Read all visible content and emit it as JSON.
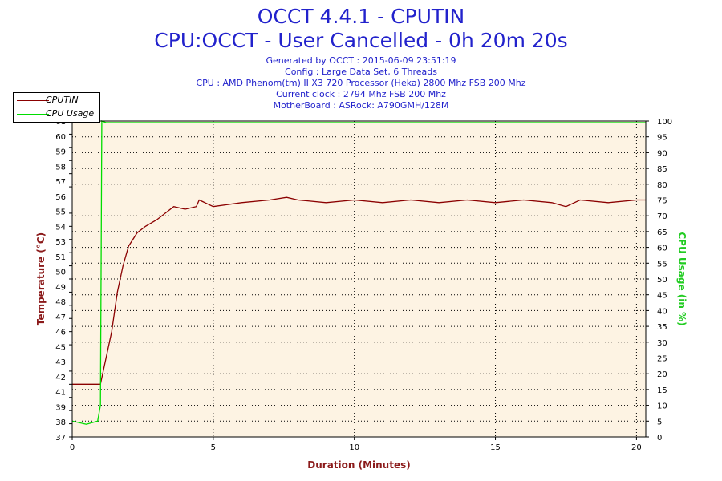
{
  "header": {
    "title_line1": "OCCT 4.4.1 - CPUTIN",
    "title_line2": "CPU:OCCT - User Cancelled - 0h 20m 20s",
    "generated": "Generated by OCCT : 2015-06-09 23:51:19",
    "config": "Config : Large Data Set, 6 Threads",
    "cpu": "CPU : AMD Phenom(tm) II X3 720 Processor (Heka) 2800 Mhz FSB 200 Mhz",
    "clock": "Current clock : 2794 Mhz FSB 200 Mhz",
    "motherboard": "MotherBoard : ASRock: A790GMH/128M"
  },
  "legend": {
    "items": [
      {
        "label": "CPUTIN",
        "color": "#8b0000"
      },
      {
        "label": "CPU Usage",
        "color": "#00dd00"
      }
    ]
  },
  "chart_data": {
    "type": "line",
    "xlabel": "Duration (Minutes)",
    "ylabel_left": "Temperature (°C)",
    "ylabel_right": "CPU Usage (in %)",
    "xlim": [
      0,
      20.33
    ],
    "ylim_left": [
      37,
      61
    ],
    "ylim_right": [
      0,
      100
    ],
    "x_ticks": [
      0,
      5,
      10,
      15,
      20
    ],
    "y_ticks_left": [
      37,
      38,
      39,
      40,
      41,
      42,
      43,
      44,
      45,
      46,
      47,
      48,
      49,
      50,
      51,
      52,
      53,
      54,
      55,
      56,
      57,
      58,
      59,
      60,
      61
    ],
    "y_tick_labels_left": [
      "37",
      "38",
      "39",
      "41",
      "42",
      "43",
      "45",
      "46",
      "47",
      "48",
      "49",
      "50",
      "51",
      "53",
      "54",
      "55",
      "56",
      "57",
      "58",
      "59",
      "60",
      "61"
    ],
    "y_ticks_right": [
      0,
      5,
      10,
      15,
      20,
      25,
      30,
      35,
      40,
      45,
      50,
      55,
      60,
      65,
      70,
      75,
      80,
      85,
      90,
      95,
      100
    ],
    "grid": true,
    "legend_position": "top-left",
    "series": [
      {
        "name": "CPUTIN",
        "axis": "left",
        "color": "#8b0000",
        "x": [
          0,
          0.5,
          0.9,
          1.0,
          1.2,
          1.4,
          1.6,
          1.8,
          2.0,
          2.3,
          2.6,
          3.0,
          3.3,
          3.6,
          4.0,
          4.4,
          4.5,
          5.0,
          6.0,
          7.0,
          7.6,
          8.0,
          9.0,
          10.0,
          11.0,
          12.0,
          13.0,
          14.0,
          15.0,
          16.0,
          17.0,
          17.5,
          18.0,
          19.0,
          20.0,
          20.33
        ],
        "y": [
          41,
          41,
          41,
          41,
          43,
          45,
          48,
          50,
          51.5,
          52.5,
          53,
          53.5,
          54,
          54.5,
          54.3,
          54.5,
          55,
          54.5,
          54.8,
          55,
          55.2,
          55,
          54.8,
          55,
          54.8,
          55,
          54.8,
          55,
          54.8,
          55,
          54.8,
          54.5,
          55,
          54.8,
          55,
          55
        ]
      },
      {
        "name": "CPU Usage",
        "axis": "right",
        "color": "#00dd00",
        "x": [
          0,
          0.5,
          0.9,
          1.0,
          1.05,
          1.2,
          5,
          10,
          15,
          20,
          20.33
        ],
        "y": [
          5,
          4,
          5,
          10,
          100,
          99.5,
          99.5,
          99.5,
          99.5,
          99.5,
          99.5
        ]
      }
    ]
  }
}
